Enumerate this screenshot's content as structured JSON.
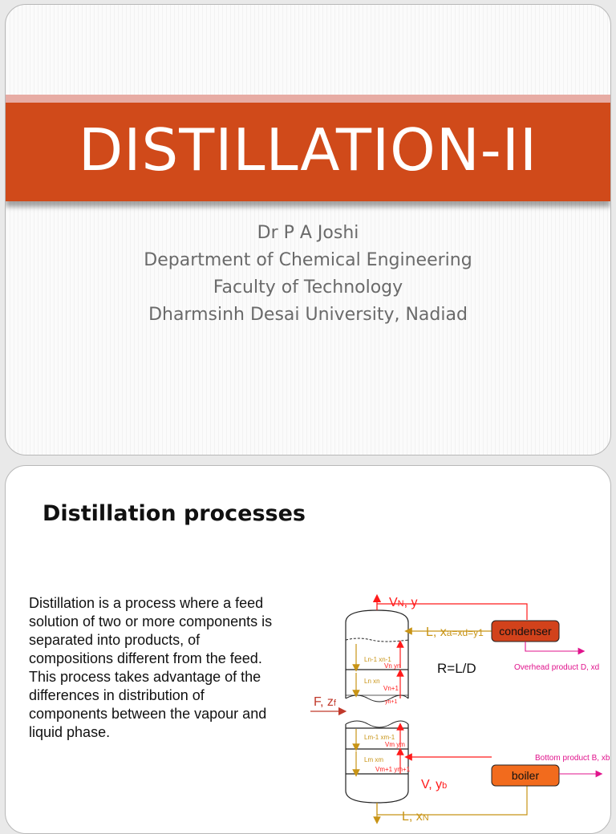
{
  "slide1": {
    "title": "DISTILLATION-II",
    "subtitle_lines": [
      "Dr P A Joshi",
      "Department of Chemical Engineering",
      "Faculty of Technology",
      "Dharmsinh Desai University, Nadiad"
    ]
  },
  "slide2": {
    "heading": "Distillation processes",
    "paragraph": "Distillation is a process where a feed solution of two or more components is separated into products, of compositions different from the feed. This process takes advantage of the differences in distribution of components between the vapour and liquid phase.",
    "diagram": {
      "vapour_top": "VN, y",
      "vapour_top_main": "V",
      "vapour_top_sub": "N",
      "vapour_top_rest": ", y",
      "reflux_main": "L, x",
      "reflux_sub": "a=xd=y1",
      "condenser": "condenser",
      "ratio": "R=L/D",
      "overhead": "Overhead product D, xd",
      "feed_main": "F, z",
      "feed_sub": "f",
      "bottom_product": "Bottom product B, xb",
      "boiler": "boiler",
      "boilup_main": "V, y",
      "boilup_sub": "b",
      "bottom_liquid_main": "L, x",
      "bottom_liquid_sub": "N",
      "tray_labels": {
        "t1_liquid": "Ln-1 xn-1",
        "t1_vapour": "Vn yn",
        "t2_liquid": "Ln xn",
        "t2_vapour": "Vn+1",
        "t2_vapour2": "yn+1",
        "t3_liquid": "Lm-1 xm-1",
        "t3_vapour": "Vm ym",
        "t4_liquid": "Lm xm",
        "t4_vapour": "Vm+1 ym+1"
      },
      "colors": {
        "vapour": "#ff1a1a",
        "liquid": "#c89416",
        "product": "#e0138c",
        "feed": "#c0392b",
        "condenser_fill": "#d2421b",
        "boiler_fill": "#f26b1d"
      }
    }
  }
}
